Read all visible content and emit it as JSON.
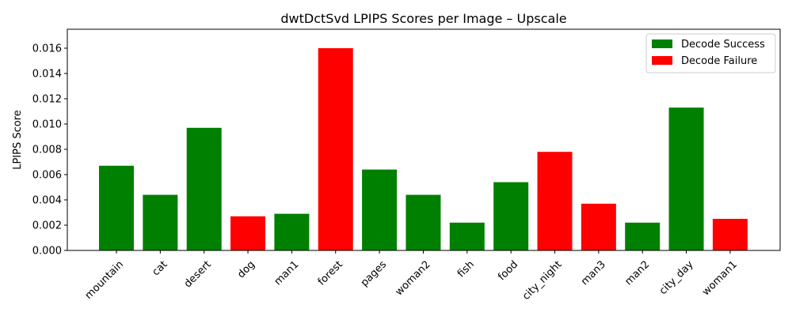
{
  "chart_data": {
    "type": "bar",
    "title": "dwtDctSvd LPIPS Scores per Image – Upscale",
    "xlabel": "",
    "ylabel": "LPIPS Score",
    "ylim": [
      0,
      0.0175
    ],
    "yticks": [
      "0.000",
      "0.002",
      "0.004",
      "0.006",
      "0.008",
      "0.010",
      "0.012",
      "0.014",
      "0.016"
    ],
    "ytick_values": [
      0,
      0.002,
      0.004,
      0.006,
      0.008,
      0.01,
      0.012,
      0.014,
      0.016
    ],
    "categories": [
      "mountain",
      "cat",
      "desert",
      "dog",
      "man1",
      "forest",
      "pages",
      "woman2",
      "fish",
      "food",
      "city_night",
      "man3",
      "man2",
      "city_day",
      "woman1"
    ],
    "values": [
      0.0067,
      0.0044,
      0.0097,
      0.0027,
      0.0029,
      0.016,
      0.0064,
      0.0044,
      0.0022,
      0.0054,
      0.0078,
      0.0037,
      0.0022,
      0.0113,
      0.0025
    ],
    "status": [
      "success",
      "success",
      "success",
      "failure",
      "success",
      "failure",
      "success",
      "success",
      "success",
      "success",
      "failure",
      "failure",
      "success",
      "success",
      "failure"
    ],
    "legend": {
      "placement": "top-right",
      "entries": [
        {
          "key": "success",
          "label": "Decode Success",
          "color": "#008000"
        },
        {
          "key": "failure",
          "label": "Decode Failure",
          "color": "#ff0000"
        }
      ]
    },
    "grid": false
  }
}
